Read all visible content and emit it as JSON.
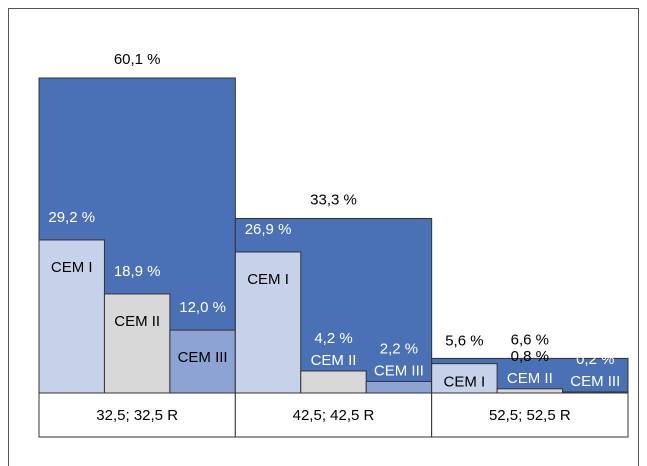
{
  "chart_data": {
    "type": "nested-bar",
    "categories": [
      "32,5; 32,5 R",
      "42,5; 42,5 R",
      "52,5; 52,5 R"
    ],
    "totals": {
      "color": "#4a70b6",
      "values": [
        60.1,
        33.3,
        6.6
      ],
      "value_labels": [
        "60,1 %",
        "33,3 %",
        "6,6 %"
      ]
    },
    "series": [
      {
        "name": "CEM I",
        "color": "#c6d1ea",
        "values": [
          29.2,
          26.9,
          5.6
        ],
        "value_labels": [
          "29,2 %",
          "26,9 %",
          "5,6 %"
        ]
      },
      {
        "name": "CEM II",
        "color": "#d8d8d8",
        "values": [
          18.9,
          4.2,
          0.8
        ],
        "value_labels": [
          "18,9 %",
          "4,2 %",
          "0,8 %"
        ]
      },
      {
        "name": "CEM III",
        "color": "#8da3d3",
        "values": [
          12.0,
          2.2,
          0.2
        ],
        "value_labels": [
          "12,0 %",
          "2,2 %",
          "0,2 %"
        ]
      }
    ]
  }
}
